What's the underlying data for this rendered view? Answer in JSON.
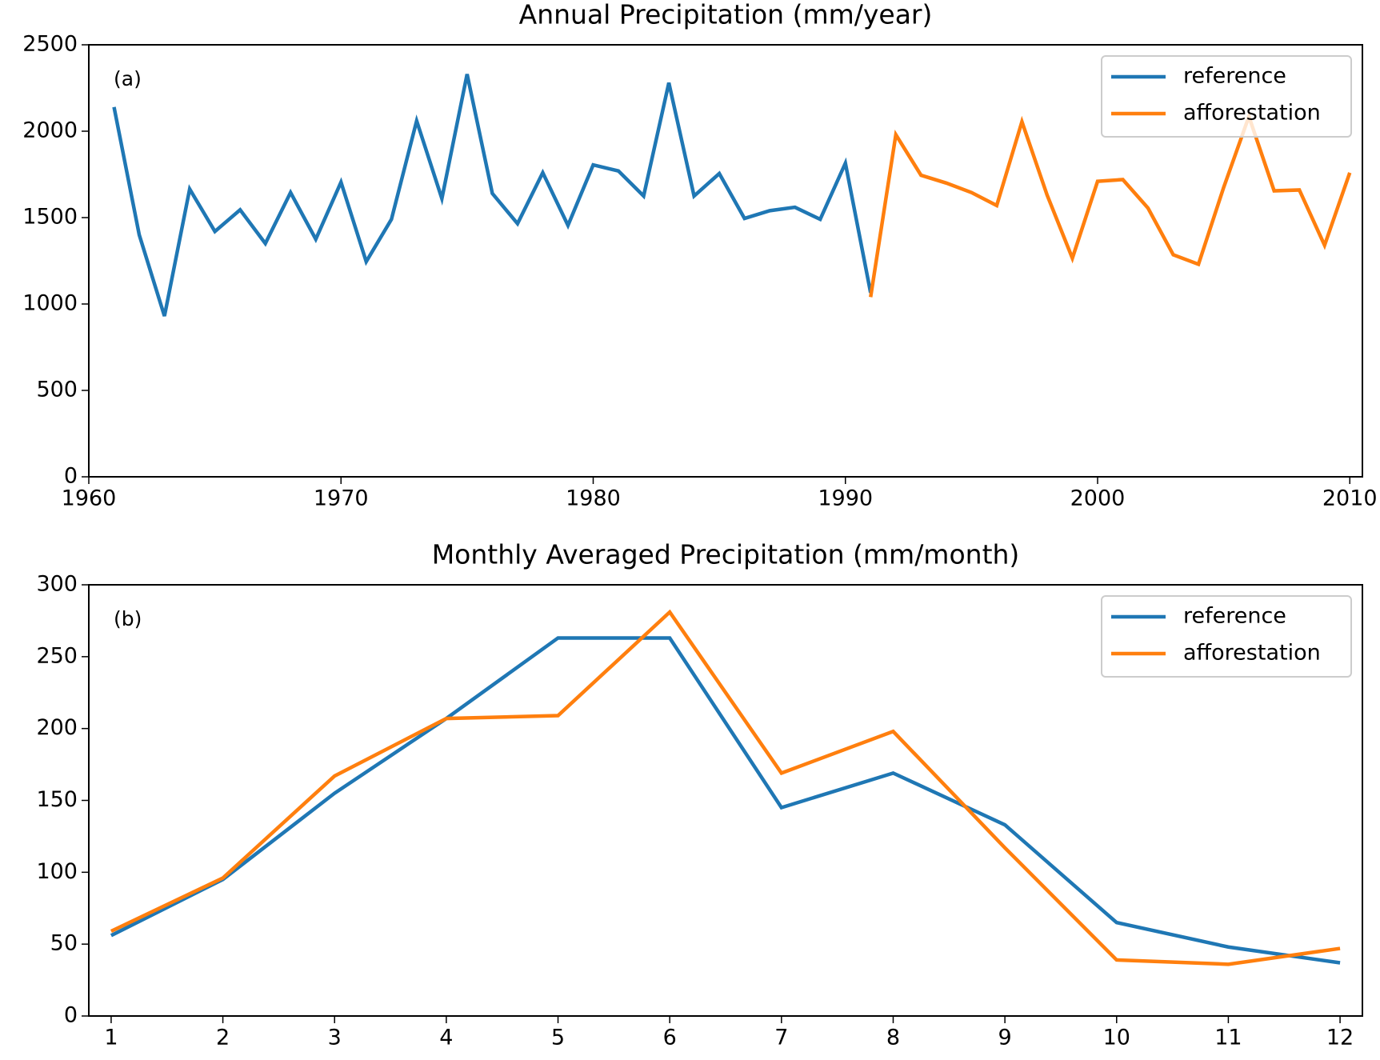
{
  "chart_data": [
    {
      "type": "line",
      "title": "Annual Precipitation (mm/year)",
      "annotation": "(a)",
      "x": [
        1961,
        1962,
        1963,
        1964,
        1965,
        1966,
        1967,
        1968,
        1969,
        1970,
        1971,
        1972,
        1973,
        1974,
        1975,
        1976,
        1977,
        1978,
        1979,
        1980,
        1981,
        1982,
        1983,
        1984,
        1985,
        1986,
        1987,
        1988,
        1989,
        1990,
        1991,
        1992,
        1993,
        1994,
        1995,
        1996,
        1997,
        1998,
        1999,
        2000,
        2001,
        2002,
        2003,
        2004,
        2005,
        2006,
        2007,
        2008,
        2009,
        2010
      ],
      "series": [
        {
          "name": "reference",
          "color": "#1f77b4",
          "values": [
            2140,
            1400,
            930,
            1665,
            1420,
            1545,
            1350,
            1645,
            1375,
            1705,
            1245,
            1490,
            2060,
            1610,
            2330,
            1640,
            1465,
            1760,
            1455,
            1805,
            1770,
            1625,
            2280,
            1625,
            1755,
            1495,
            1540,
            1560,
            1490,
            1815,
            1065,
            null,
            null,
            null,
            null,
            null,
            null,
            null,
            null,
            null,
            null,
            null,
            null,
            null,
            null,
            null,
            null,
            null,
            null,
            null
          ]
        },
        {
          "name": "afforestation",
          "color": "#ff7f0e",
          "values": [
            null,
            null,
            null,
            null,
            null,
            null,
            null,
            null,
            null,
            null,
            null,
            null,
            null,
            null,
            null,
            null,
            null,
            null,
            null,
            null,
            null,
            null,
            null,
            null,
            null,
            null,
            null,
            null,
            null,
            null,
            1040,
            1980,
            1745,
            1700,
            1645,
            1570,
            2055,
            1630,
            1265,
            1710,
            1720,
            1555,
            1285,
            1230,
            1675,
            2085,
            1655,
            1660,
            1340,
            1760
          ]
        }
      ],
      "xlim": [
        1960,
        2010.5
      ],
      "xticks": [
        1960,
        1970,
        1980,
        1990,
        2000,
        2010
      ],
      "ylim": [
        0,
        2500
      ],
      "yticks": [
        0,
        500,
        1000,
        1500,
        2000,
        2500
      ],
      "grid": false,
      "legend": "upper right"
    },
    {
      "type": "line",
      "title": "Monthly Averaged Precipitation (mm/month)",
      "annotation": "(b)",
      "x": [
        1,
        2,
        3,
        4,
        5,
        6,
        7,
        8,
        9,
        10,
        11,
        12
      ],
      "series": [
        {
          "name": "reference",
          "color": "#1f77b4",
          "values": [
            56,
            95,
            155,
            207,
            263,
            263,
            145,
            169,
            133,
            65,
            48,
            37
          ]
        },
        {
          "name": "afforestation",
          "color": "#ff7f0e",
          "values": [
            59,
            96,
            167,
            207,
            209,
            281,
            169,
            198,
            117,
            39,
            36,
            47
          ]
        }
      ],
      "xlim": [
        0.8,
        12.2
      ],
      "xticks": [
        1,
        2,
        3,
        4,
        5,
        6,
        7,
        8,
        9,
        10,
        11,
        12
      ],
      "ylim": [
        0,
        300
      ],
      "yticks": [
        0,
        50,
        100,
        150,
        200,
        250,
        300
      ],
      "grid": false,
      "legend": "upper right"
    }
  ]
}
